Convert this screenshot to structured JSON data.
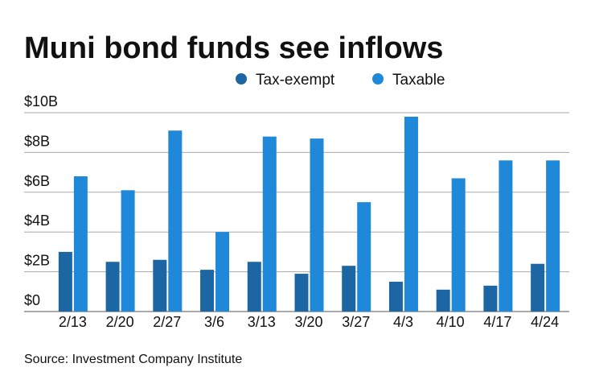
{
  "chart_data": {
    "type": "bar",
    "title": "Muni bond funds see inflows",
    "source": "Source: Investment Company Institute",
    "categories": [
      "2/13",
      "2/20",
      "2/27",
      "3/6",
      "3/13",
      "3/20",
      "3/27",
      "4/3",
      "4/10",
      "4/17",
      "4/24"
    ],
    "series": [
      {
        "name": "Tax-exempt",
        "color": "#1c67a3",
        "values": [
          3.0,
          2.5,
          2.6,
          2.1,
          2.5,
          1.9,
          2.3,
          1.5,
          1.1,
          1.3,
          2.4
        ]
      },
      {
        "name": "Taxable",
        "color": "#1f88d9",
        "values": [
          6.8,
          6.1,
          9.1,
          4.0,
          8.8,
          8.7,
          5.5,
          9.8,
          6.7,
          7.6,
          7.6
        ]
      }
    ],
    "ylim": [
      0,
      10
    ],
    "yticks": [
      {
        "value": 0,
        "label": "$0"
      },
      {
        "value": 2,
        "label": "$2B"
      },
      {
        "value": 4,
        "label": "$4B"
      },
      {
        "value": 6,
        "label": "$6B"
      },
      {
        "value": 8,
        "label": "$8B"
      },
      {
        "value": 10,
        "label": "$10B"
      }
    ],
    "grid": true
  }
}
